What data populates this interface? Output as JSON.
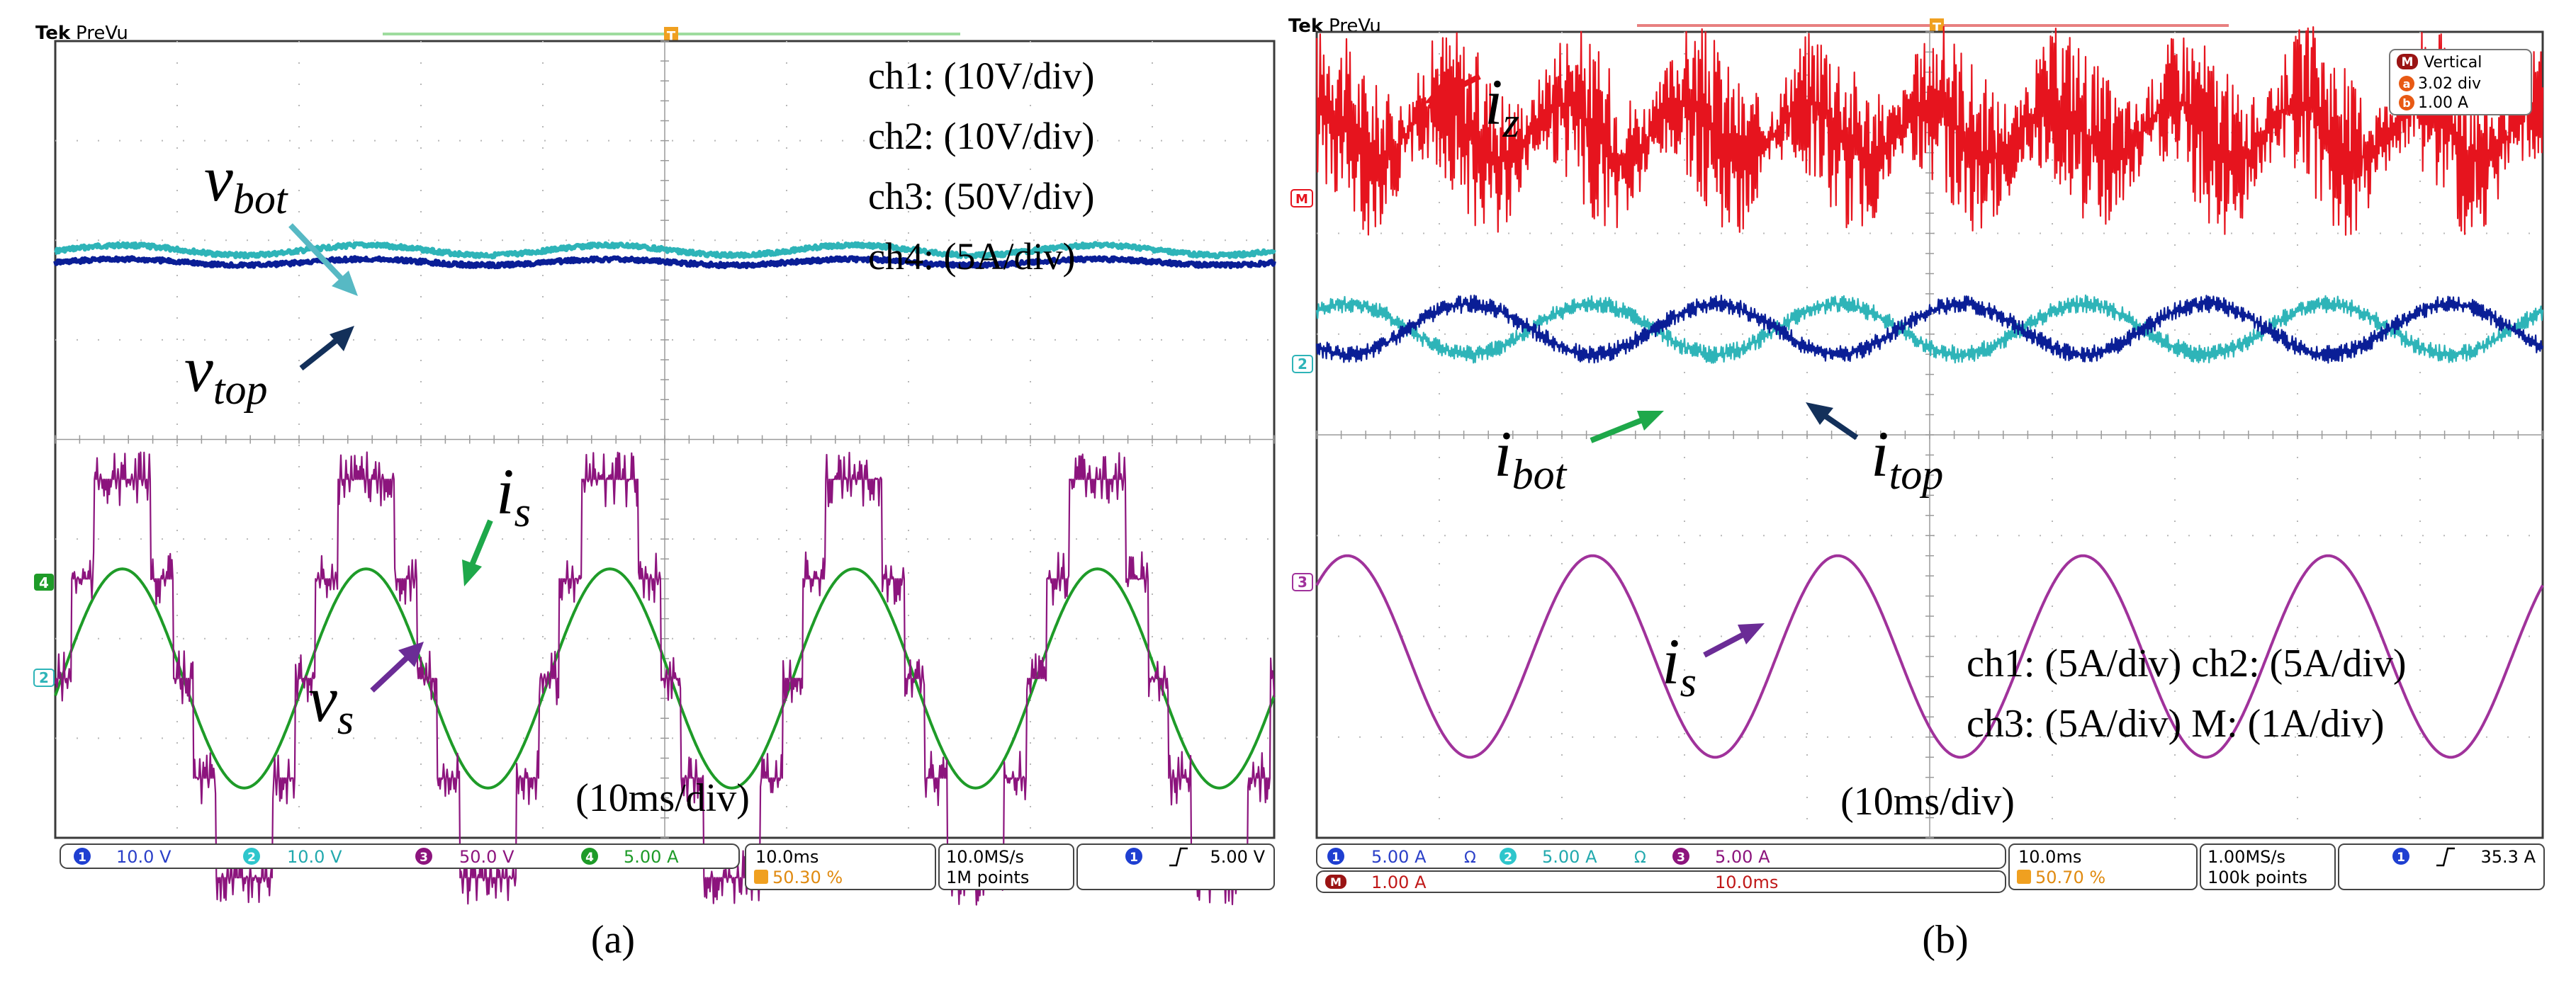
{
  "figure": {
    "caption_a": "(a)",
    "caption_b": "(b)"
  },
  "chart_data": [
    {
      "type": "line",
      "panel": "a",
      "brand": "Tek",
      "mode": "PreVu",
      "time_div": "(10ms/div)",
      "scale_text": [
        "ch1: (10V/div)",
        "ch2: (10V/div)",
        "ch3: (50V/div)",
        "ch4: (5A/div)"
      ],
      "trigger_marker": "T",
      "channel_markers": [
        "4",
        "2"
      ],
      "period_ms": 20,
      "x_range_ms": [
        0,
        100
      ],
      "series": [
        {
          "name": "v_bot",
          "label_main": "v",
          "label_sub": "bot",
          "channel": 2,
          "color": "#2eb4b8",
          "offset_div": 1.9,
          "dc_div": 0,
          "amplitude_div": 0.05,
          "shape": "flat-trace"
        },
        {
          "name": "v_top",
          "label_main": "v",
          "label_sub": "top",
          "channel": 1,
          "color": "#0a1e96",
          "offset_div": 1.9,
          "dc_div": -0.12,
          "amplitude_div": 0.03,
          "shape": "flat-trace"
        },
        {
          "name": "i_s",
          "label_main": "i",
          "label_sub": "s",
          "channel": 4,
          "color": "#1e9b28",
          "offset_div": -2.4,
          "dc_div": 0,
          "amplitude_div": 1.1,
          "shape": "sine"
        },
        {
          "name": "v_s",
          "label_main": "v",
          "label_sub": "s",
          "channel": 3,
          "color": "#8c147d",
          "offset_div": -2.4,
          "dc_div": 0,
          "amplitude_div": 2.0,
          "levels": 5,
          "shape": "multilevel-staircase"
        }
      ],
      "readout": {
        "ch1": "10.0 V",
        "ch2": "10.0 V",
        "ch3": "50.0 V",
        "ch4": "5.00 A",
        "horiz": "10.0ms",
        "trig_pos": "50.30 %",
        "sample_rate": "10.0MS/s",
        "record": "1M points",
        "trig_src": "1",
        "trig_level": "5.00 V"
      }
    },
    {
      "type": "line",
      "panel": "b",
      "brand": "Tek",
      "mode": "PreVu",
      "time_div": "(10ms/div)",
      "scale_text": [
        "ch1: (5A/div) ch2: (5A/div)",
        "ch3: (5A/div) M: (1A/div)"
      ],
      "trigger_marker": "T",
      "channel_markers": [
        "M",
        "2",
        "3"
      ],
      "period_ms": 20,
      "x_range_ms": [
        0,
        100
      ],
      "math_box": {
        "title": "Vertical",
        "pos": "3.02 div",
        "scale": "1.00 A",
        "badge_m": "M",
        "badge_a": "a",
        "badge_b": "b"
      },
      "series": [
        {
          "name": "i_z",
          "label_main": "i",
          "label_sub": "z",
          "channel": "M",
          "color": "#e6141e",
          "offset_div": 3.02,
          "dc_div": 0,
          "amplitude_div": 0.9,
          "shape": "switching-ripple"
        },
        {
          "name": "i_bot",
          "label_main": "i",
          "label_sub": "bot",
          "channel": 2,
          "color": "#2eb4b8",
          "offset_div": 1.05,
          "dc_div": 0,
          "amplitude_div": 0.25,
          "shape": "sine-with-ripple"
        },
        {
          "name": "i_top",
          "label_main": "i",
          "label_sub": "top",
          "channel": 1,
          "color": "#0a1e96",
          "offset_div": 1.05,
          "dc_div": 0,
          "amplitude_div": 0.25,
          "shape": "inverted-sine-with-ripple"
        },
        {
          "name": "i_s",
          "label_main": "i",
          "label_sub": "s",
          "channel": 3,
          "color": "#a0329b",
          "offset_div": -2.2,
          "dc_div": 0,
          "amplitude_div": 1.0,
          "shape": "sine"
        }
      ],
      "readout": {
        "ch1": "5.00 A",
        "ch2": "5.00 A",
        "ch3": "5.00 A",
        "math": "1.00 A",
        "math_time": "10.0ms",
        "horiz": "10.0ms",
        "trig_pos": "50.70 %",
        "sample_rate": "1.00MS/s",
        "record": "100k points",
        "trig_src": "1",
        "trig_level": "35.3 A"
      }
    }
  ]
}
